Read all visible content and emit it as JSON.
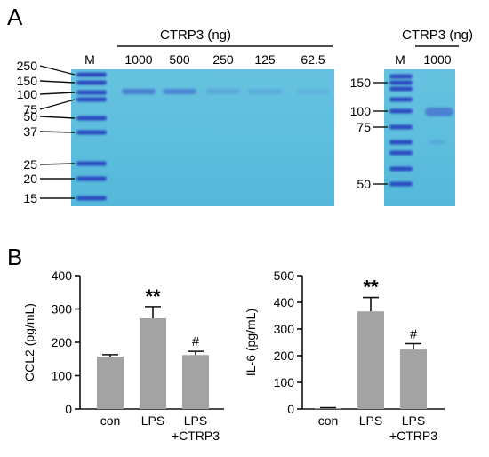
{
  "panel_a": {
    "label": "A",
    "gel1": {
      "marker_label": "M",
      "header": "CTRP3 (ng)",
      "lanes": [
        "1000",
        "500",
        "250",
        "125",
        "62.5"
      ],
      "band_intensity": [
        0.95,
        0.85,
        0.35,
        0.3,
        0.2
      ],
      "ladder_kda": [
        "250",
        "150",
        "100",
        "75",
        "50",
        "37",
        "25",
        "20",
        "15"
      ]
    },
    "gel2": {
      "marker_label": "M",
      "header": "CTRP3 (ng)",
      "lanes": [
        "1000"
      ],
      "ladder_kda": [
        "150",
        "100",
        "75",
        "50"
      ]
    },
    "colors": {
      "gel": "#5cbcdc",
      "ladder_band": "#2a48c0",
      "sample_band": "#4a7ad2"
    }
  },
  "panel_b": {
    "label": "B"
  },
  "chart_data": [
    {
      "type": "bar",
      "categories": [
        "con",
        "LPS",
        "LPS\n+CTRP3"
      ],
      "values": [
        157,
        272,
        162
      ],
      "errors": [
        6,
        35,
        11
      ],
      "significance": [
        "",
        "**",
        "#"
      ],
      "ylabel": "CCL2 (pg/mL)",
      "ylim": [
        0,
        400
      ],
      "yticks": [
        "0",
        "100",
        "200",
        "300",
        "400"
      ],
      "bar_color": "#a3a3a3"
    },
    {
      "type": "bar",
      "categories": [
        "con",
        "LPS",
        "LPS\n+CTRP3"
      ],
      "values": [
        3,
        366,
        223
      ],
      "errors": [
        2,
        52,
        22
      ],
      "significance": [
        "",
        "**",
        "#"
      ],
      "ylabel": "IL-6 (pg/mL)",
      "ylim": [
        0,
        500
      ],
      "yticks": [
        "0",
        "100",
        "200",
        "300",
        "400",
        "500"
      ],
      "bar_color": "#a3a3a3"
    }
  ]
}
